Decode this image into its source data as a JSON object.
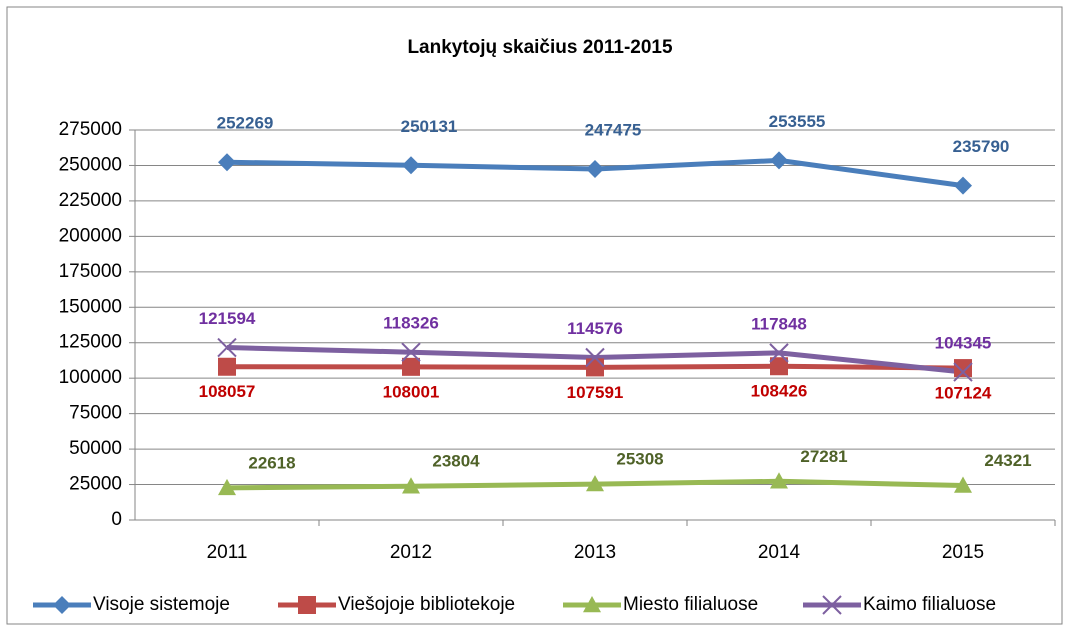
{
  "chart_data": {
    "type": "line",
    "title": "Lankytojų skaičius  2011-2015",
    "categories": [
      "2011",
      "2012",
      "2013",
      "2014",
      "2015"
    ],
    "series": [
      {
        "name": "Visoje sistemoje",
        "color": "#4a7ebb",
        "label_color": "#376092",
        "marker": "diamond",
        "values": [
          252269,
          250131,
          247475,
          253555,
          235790
        ]
      },
      {
        "name": "Viešojoje bibliotekoje",
        "color": "#be4b48",
        "label_color": "#c00000",
        "marker": "square",
        "values": [
          108057,
          108001,
          107591,
          108426,
          107124
        ]
      },
      {
        "name": "Miesto filialuose",
        "color": "#98b954",
        "label_color": "#4f6228",
        "marker": "triangle",
        "values": [
          22618,
          23804,
          25308,
          27281,
          24321
        ]
      },
      {
        "name": "Kaimo filialuose",
        "color": "#7d60a0",
        "label_color": "#7030a0",
        "marker": "x",
        "values": [
          121594,
          118326,
          114576,
          117848,
          104345
        ]
      }
    ],
    "ylim": [
      0,
      275000
    ],
    "yticks": [
      0,
      25000,
      50000,
      75000,
      100000,
      125000,
      150000,
      175000,
      200000,
      225000,
      250000,
      275000
    ],
    "grid": true,
    "legend": "bottom"
  }
}
